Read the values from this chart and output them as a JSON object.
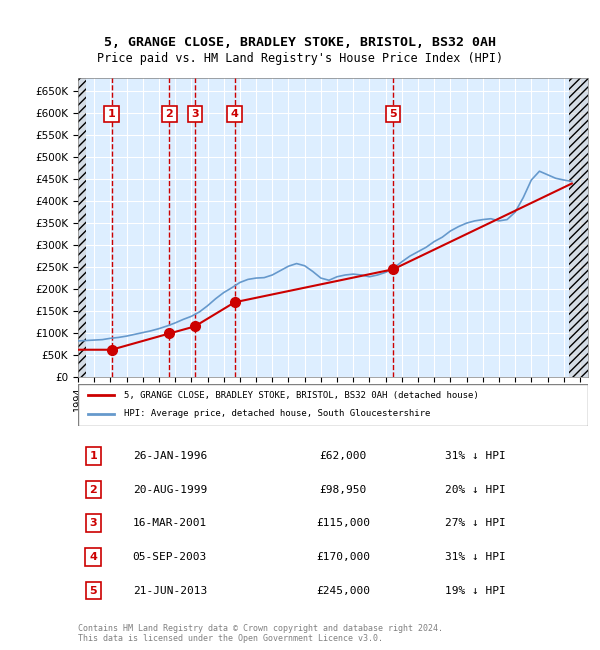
{
  "title": "5, GRANGE CLOSE, BRADLEY STOKE, BRISTOL, BS32 0AH",
  "subtitle": "Price paid vs. HM Land Registry's House Price Index (HPI)",
  "ylabel_ticks": [
    "£0",
    "£50K",
    "£100K",
    "£150K",
    "£200K",
    "£250K",
    "£300K",
    "£350K",
    "£400K",
    "£450K",
    "£500K",
    "£550K",
    "£600K",
    "£650K"
  ],
  "ytick_vals": [
    0,
    50000,
    100000,
    150000,
    200000,
    250000,
    300000,
    350000,
    400000,
    450000,
    500000,
    550000,
    600000,
    650000
  ],
  "ylim": [
    0,
    680000
  ],
  "xlim_left": 1994.0,
  "xlim_right": 2025.5,
  "sales": [
    {
      "num": 1,
      "year": 1996.07,
      "price": 62000,
      "date": "26-JAN-1996",
      "pct": "31% ↓ HPI"
    },
    {
      "num": 2,
      "year": 1999.64,
      "price": 98950,
      "date": "20-AUG-1999",
      "pct": "20% ↓ HPI"
    },
    {
      "num": 3,
      "year": 2001.21,
      "price": 115000,
      "date": "16-MAR-2001",
      "pct": "27% ↓ HPI"
    },
    {
      "num": 4,
      "year": 2003.68,
      "price": 170000,
      "date": "05-SEP-2003",
      "pct": "31% ↓ HPI"
    },
    {
      "num": 5,
      "year": 2013.47,
      "price": 245000,
      "date": "21-JUN-2013",
      "pct": "19% ↓ HPI"
    }
  ],
  "hpi_line": {
    "years": [
      1994,
      1994.5,
      1995,
      1995.5,
      1996,
      1996.5,
      1997,
      1997.5,
      1998,
      1998.5,
      1999,
      1999.5,
      2000,
      2000.5,
      2001,
      2001.5,
      2002,
      2002.5,
      2003,
      2003.5,
      2004,
      2004.5,
      2005,
      2005.5,
      2006,
      2006.5,
      2007,
      2007.5,
      2008,
      2008.5,
      2009,
      2009.5,
      2010,
      2010.5,
      2011,
      2011.5,
      2012,
      2012.5,
      2013,
      2013.5,
      2014,
      2014.5,
      2015,
      2015.5,
      2016,
      2016.5,
      2017,
      2017.5,
      2018,
      2018.5,
      2019,
      2019.5,
      2020,
      2020.5,
      2021,
      2021.5,
      2022,
      2022.5,
      2023,
      2023.5,
      2024,
      2024.5
    ],
    "values": [
      82000,
      83000,
      84000,
      85000,
      88000,
      90000,
      93000,
      97000,
      101000,
      105000,
      110000,
      116000,
      123000,
      131000,
      138000,
      148000,
      162000,
      178000,
      192000,
      203000,
      215000,
      222000,
      225000,
      226000,
      232000,
      242000,
      252000,
      258000,
      253000,
      240000,
      225000,
      220000,
      228000,
      232000,
      234000,
      232000,
      228000,
      232000,
      238000,
      248000,
      262000,
      275000,
      285000,
      295000,
      308000,
      318000,
      332000,
      342000,
      350000,
      355000,
      358000,
      360000,
      355000,
      358000,
      375000,
      408000,
      448000,
      468000,
      460000,
      452000,
      448000,
      445000
    ]
  },
  "red_line": {
    "years": [
      1994,
      1996.07,
      1999.64,
      2001.21,
      2003.68,
      2013.47,
      2024.5
    ],
    "values": [
      62000,
      62000,
      98950,
      115000,
      170000,
      245000,
      440000
    ]
  },
  "sale_color": "#cc0000",
  "hpi_color": "#6699cc",
  "legend_label_sale": "5, GRANGE CLOSE, BRADLEY STOKE, BRISTOL, BS32 0AH (detached house)",
  "legend_label_hpi": "HPI: Average price, detached house, South Gloucestershire",
  "footer": "Contains HM Land Registry data © Crown copyright and database right 2024.\nThis data is licensed under the Open Government Licence v3.0.",
  "bg_chart": "#ddeeff",
  "bg_hatch": "#e8e8e8",
  "box_color": "#cc0000",
  "dashed_color": "#cc0000"
}
